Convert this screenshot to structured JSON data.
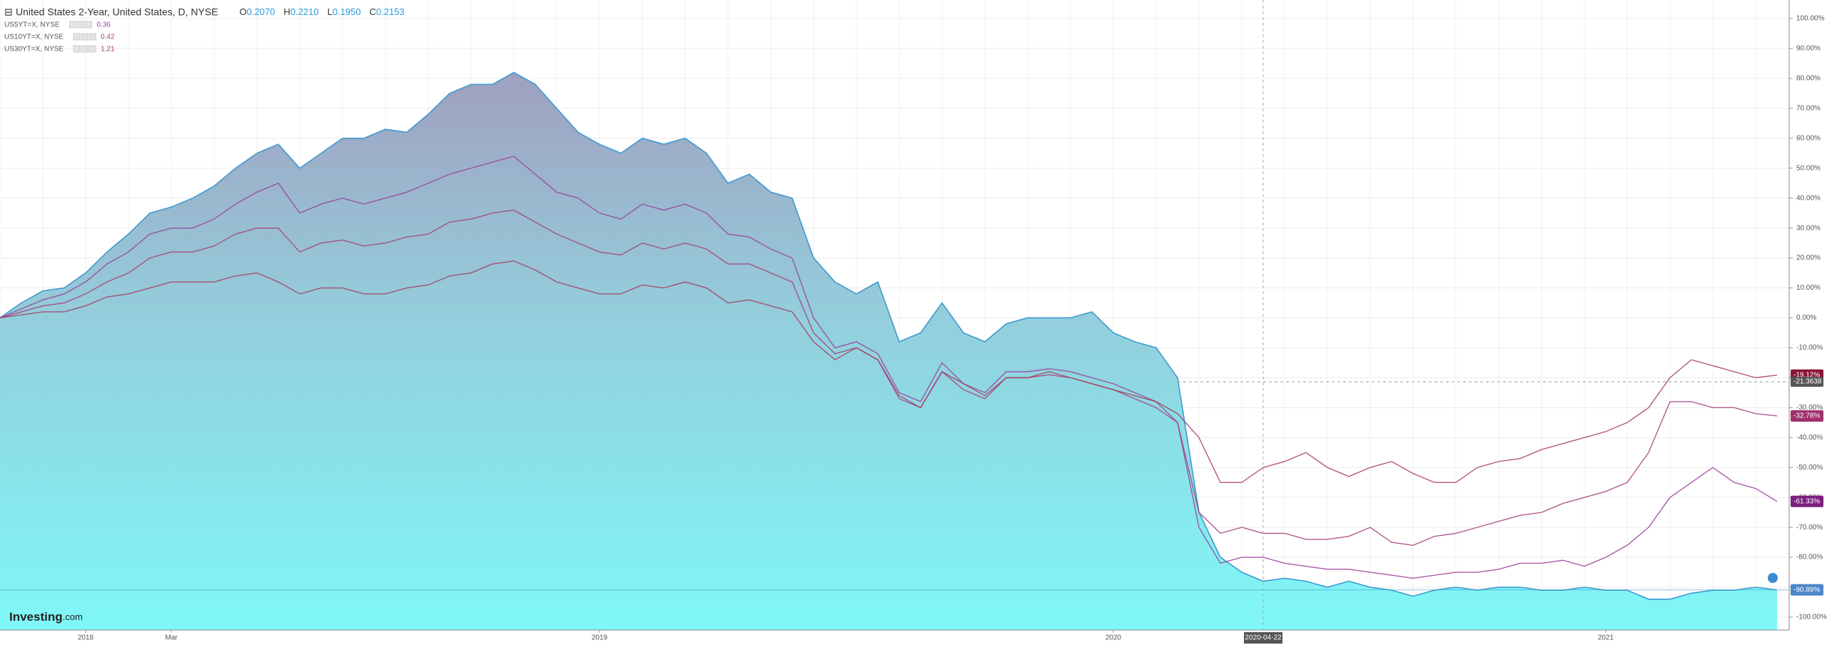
{
  "chart_data": {
    "type": "area-line",
    "title": "United States 2-Year, United States, D, NYSE",
    "ohlc": [
      {
        "label": "O",
        "value": "0.2070"
      },
      {
        "label": "H",
        "value": "0.2210"
      },
      {
        "label": "L",
        "value": "0.1950"
      },
      {
        "label": "C",
        "value": "0.2153"
      }
    ],
    "brand": {
      "name": "Investing",
      "suffix": ".com"
    },
    "categories": [
      null,
      null,
      null,
      null,
      "2018",
      null,
      null,
      null,
      "Mar",
      null,
      null,
      null,
      null,
      null,
      null,
      null,
      null,
      null,
      null,
      null,
      null,
      null,
      null,
      null,
      null,
      null,
      null,
      null,
      "2019",
      null,
      null,
      null,
      null,
      null,
      null,
      null,
      null,
      null,
      null,
      null,
      null,
      null,
      null,
      null,
      null,
      null,
      null,
      null,
      null,
      null,
      null,
      null,
      "2020",
      null,
      null,
      null,
      null,
      null,
      null,
      "2020-04-22",
      null,
      null,
      null,
      null,
      null,
      null,
      null,
      null,
      null,
      null,
      null,
      null,
      null,
      null,
      null,
      "2021",
      null,
      null,
      null,
      null,
      null,
      null,
      null,
      null
    ],
    "series": [
      {
        "name": "United States 2-Year",
        "color": "#3d9ad1",
        "fill": true,
        "last_label": "-90.89%",
        "badge": "#4a86c8",
        "values": [
          0,
          5,
          9,
          10,
          15,
          22,
          28,
          35,
          37,
          40,
          44,
          50,
          55,
          58,
          50,
          55,
          60,
          60,
          63,
          62,
          68,
          75,
          78,
          78,
          82,
          78,
          70,
          62,
          58,
          55,
          60,
          58,
          60,
          55,
          45,
          48,
          42,
          40,
          20,
          12,
          8,
          12,
          -8,
          -5,
          5,
          -5,
          -8,
          -2,
          0,
          0,
          0,
          2,
          -5,
          -8,
          -10,
          -20,
          -65,
          -80,
          -85,
          -88,
          -87,
          -88,
          -90,
          -88,
          -90,
          -91,
          -93,
          -91,
          -90,
          -91,
          -90,
          -90,
          -91,
          -91,
          -90,
          -91,
          -91,
          -94,
          -94,
          -92,
          -91,
          -91,
          -90,
          -90.89
        ]
      },
      {
        "name": "US5YT=X, NYSE",
        "legend_value": 0.36,
        "color": "#9a3f9a",
        "last_label": "-61.33%",
        "badge": "#7b1f80",
        "values": [
          0,
          3,
          6,
          8,
          12,
          18,
          22,
          28,
          30,
          30,
          33,
          38,
          42,
          45,
          35,
          38,
          40,
          38,
          40,
          42,
          45,
          48,
          50,
          52,
          54,
          48,
          42,
          40,
          35,
          33,
          38,
          36,
          38,
          35,
          28,
          27,
          23,
          20,
          0,
          -10,
          -8,
          -12,
          -25,
          -28,
          -15,
          -22,
          -25,
          -18,
          -18,
          -17,
          -18,
          -20,
          -22,
          -25,
          -28,
          -35,
          -70,
          -82,
          -80,
          -80,
          -82,
          -83,
          -84,
          -84,
          -85,
          -86,
          -87,
          -86,
          -85,
          -85,
          -84,
          -82,
          -82,
          -81,
          -83,
          -80,
          -76,
          -70,
          -60,
          -55,
          -50,
          -55,
          -57,
          -61.33
        ]
      },
      {
        "name": "US10YT=X, NYSE",
        "legend_value": 0.42,
        "color": "#a5407a",
        "last_label": "-32.78%",
        "badge": "#a0306e",
        "values": [
          0,
          2,
          4,
          5,
          8,
          12,
          15,
          20,
          22,
          22,
          24,
          28,
          30,
          30,
          22,
          25,
          26,
          24,
          25,
          27,
          28,
          32,
          33,
          35,
          36,
          32,
          28,
          25,
          22,
          21,
          25,
          23,
          25,
          23,
          18,
          18,
          15,
          12,
          -5,
          -12,
          -10,
          -14,
          -27,
          -30,
          -18,
          -24,
          -27,
          -20,
          -20,
          -19,
          -20,
          -22,
          -24,
          -27,
          -30,
          -35,
          -65,
          -72,
          -70,
          -72,
          -72,
          -74,
          -74,
          -73,
          -70,
          -75,
          -76,
          -73,
          -72,
          -70,
          -68,
          -66,
          -65,
          -62,
          -60,
          -58,
          -55,
          -45,
          -28,
          -28,
          -30,
          -30,
          -32,
          -32.78
        ]
      },
      {
        "name": "US30YT=X, NYSE",
        "legend_value": 1.21,
        "color": "#a83c5e",
        "last_label": "-19.12%",
        "badge": "#8a1538",
        "values": [
          0,
          1,
          2,
          2,
          4,
          7,
          8,
          10,
          12,
          12,
          12,
          14,
          15,
          12,
          8,
          10,
          10,
          8,
          8,
          10,
          11,
          14,
          15,
          18,
          19,
          16,
          12,
          10,
          8,
          8,
          11,
          10,
          12,
          10,
          5,
          6,
          4,
          2,
          -8,
          -14,
          -10,
          -14,
          -26,
          -30,
          -18,
          -22,
          -26,
          -20,
          -20,
          -18,
          -20,
          -22,
          -24,
          -26,
          -28,
          -32,
          -40,
          -55,
          -55,
          -50,
          -48,
          -45,
          -50,
          -53,
          -50,
          -48,
          -52,
          -55,
          -55,
          -50,
          -48,
          -47,
          -44,
          -42,
          -40,
          -38,
          -35,
          -30,
          -20,
          -14,
          -16,
          -18,
          -20,
          -19.12
        ]
      }
    ],
    "crosshair": {
      "value": -21.3638
    },
    "ylim": [
      -104.3,
      106.2
    ],
    "yticks": [
      {
        "value": -100,
        "label": "-100.00%"
      },
      {
        "value": -90,
        "label": "-90.00%"
      },
      {
        "value": -80,
        "label": "-80.00%"
      },
      {
        "value": -70,
        "label": "-70.00%"
      },
      {
        "value": -60,
        "label": "-60.00%"
      },
      {
        "value": -50,
        "label": "-50.00%"
      },
      {
        "value": -40,
        "label": "-40.00%"
      },
      {
        "value": -30,
        "label": "-30.00%"
      },
      {
        "value": -20,
        "label": "-20.00%"
      },
      {
        "value": -10,
        "label": "-10.00%"
      },
      {
        "value": 0,
        "label": "0.00%"
      },
      {
        "value": 10,
        "label": "10.00%"
      },
      {
        "value": 20,
        "label": "20.00%"
      },
      {
        "value": 30,
        "label": "30.00%"
      },
      {
        "value": 40,
        "label": "40.00%"
      },
      {
        "value": 50,
        "label": "50.00%"
      },
      {
        "value": 60,
        "label": "60.00%"
      },
      {
        "value": 70,
        "label": "70.00%"
      },
      {
        "value": 80,
        "label": "80.00%"
      },
      {
        "value": 90,
        "label": "90.00%"
      },
      {
        "value": 100,
        "label": "100.00%"
      }
    ],
    "grid": true
  }
}
